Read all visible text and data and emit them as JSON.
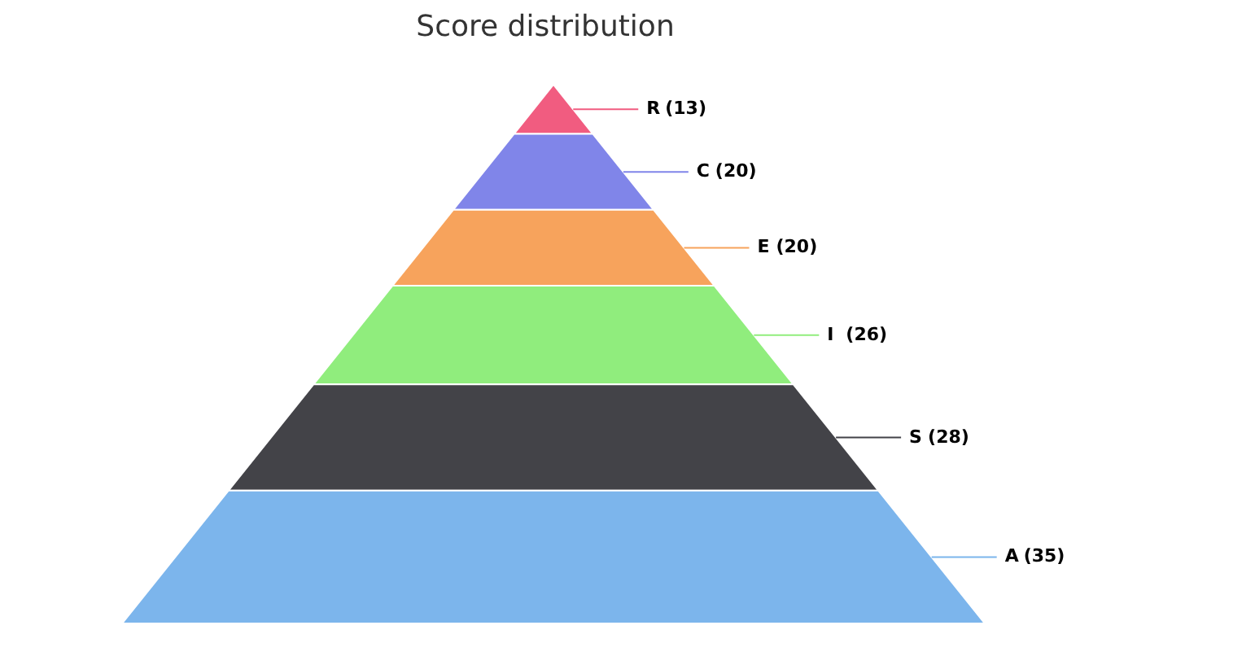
{
  "chart_data": {
    "type": "other",
    "title": "Score distribution",
    "categories": [
      "R",
      "C",
      "E",
      "I",
      "S",
      "A"
    ],
    "values": [
      13,
      20,
      20,
      26,
      28,
      35
    ],
    "value_labels": [
      "(13)",
      "(20)",
      "(20)",
      "(26)",
      "(28)",
      "(35)"
    ],
    "colors": [
      "#f15c80",
      "#8085e9",
      "#f7a35c",
      "#90ed7d",
      "#434348",
      "#7cb5ec"
    ]
  }
}
